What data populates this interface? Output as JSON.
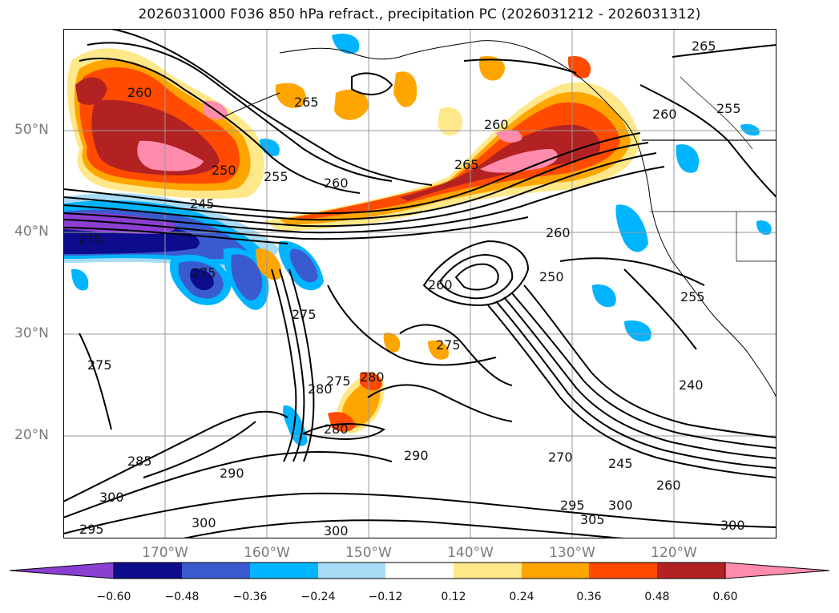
{
  "title": "2026031000 F036 850 hPa refract., precipitation PC (2026031212 - 2026031312)",
  "colors": {
    "c_neg060": "#8a3fd1",
    "c_neg048": "#0c0c8c",
    "c_neg036": "#3a5bd0",
    "c_neg024": "#00b4ff",
    "c_neg012": "#a8dcf6",
    "c_zero": "#ffffff",
    "c_pos012": "#ffe88a",
    "c_pos024": "#ffa500",
    "c_pos036": "#ff4a00",
    "c_pos048": "#b22222",
    "c_pos060": "#ff8cad",
    "contour": "#000000",
    "grid": "#9a9a9a",
    "coast": "#000000"
  },
  "map": {
    "lat_labels": [
      "50°N",
      "40°N",
      "30°N",
      "20°N"
    ],
    "lon_labels": [
      "170°W",
      "160°W",
      "150°W",
      "140°W",
      "130°W",
      "120°W"
    ]
  },
  "contour_labels": [
    "265",
    "260",
    "255",
    "250",
    "245",
    "240",
    "275",
    "280",
    "290",
    "295",
    "300",
    "305",
    "285",
    "270",
    "260",
    "250"
  ],
  "colorbar": {
    "ticks": [
      "−0.60",
      "−0.48",
      "−0.36",
      "−0.24",
      "−0.12",
      "0.12",
      "0.24",
      "0.36",
      "0.48",
      "0.60"
    ]
  }
}
